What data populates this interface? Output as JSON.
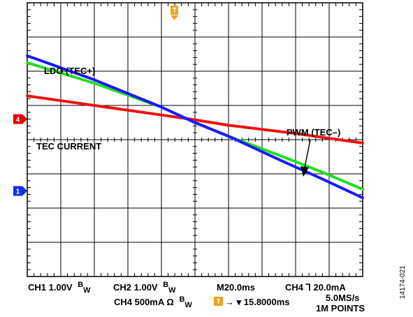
{
  "chart_data": {
    "type": "line",
    "grid": true,
    "divisions": {
      "x": 10,
      "y": 8
    },
    "x_range_div": [
      0,
      10
    ],
    "y_range_div": [
      0,
      8
    ],
    "series": [
      {
        "name": "LDO (TEC+)",
        "color": "#1a1aff",
        "points": [
          [
            0,
            6.45
          ],
          [
            2,
            5.75
          ],
          [
            4,
            4.95
          ],
          [
            5,
            4.5
          ],
          [
            6,
            4.1
          ],
          [
            7.5,
            3.42
          ],
          [
            8.8,
            2.85
          ],
          [
            10,
            2.3
          ]
        ]
      },
      {
        "color": "#22dd22",
        "points": [
          [
            0,
            6.25
          ],
          [
            2,
            5.65
          ],
          [
            4,
            4.95
          ],
          [
            5,
            4.5
          ],
          [
            6,
            4.1
          ],
          [
            7.5,
            3.55
          ],
          [
            8.8,
            3.05
          ],
          [
            10,
            2.55
          ]
        ]
      },
      {
        "color": "#ee1111",
        "points": [
          [
            0,
            5.28
          ],
          [
            2,
            5.0
          ],
          [
            4,
            4.72
          ],
          [
            5,
            4.58
          ],
          [
            6,
            4.42
          ],
          [
            8,
            4.18
          ],
          [
            10,
            3.9
          ]
        ]
      }
    ],
    "annotations": [
      "LDO (TEC+)",
      "TEC CURRENT",
      "PWM (TEC–)"
    ],
    "channel_markers": [
      {
        "label": "4",
        "level_div": 4.6,
        "color": "#e60000"
      },
      {
        "label": "1",
        "level_div": 2.5,
        "color": "#1030e0"
      }
    ],
    "trigger_marker": {
      "label": "T",
      "position_div": 4.5,
      "color": "#f0a020"
    }
  },
  "status_bar": {
    "ch1": "CH1 1.00V",
    "ch1_bw": "B",
    "ch1_bw_sub": "W",
    "ch2": "CH2 1.00V",
    "ch2_bw": "B",
    "ch2_bw_sub": "W",
    "ch4": "CH4 500mA Ω",
    "ch4_bw": "B",
    "ch4_bw_sub": "W",
    "timebase": "M20.0ms",
    "trig_pos": "→ ▾ 15.8000ms",
    "trigger": "CH4 ⅂ 20.0mA",
    "sample_rate": "5.0MS/s",
    "record": "1M POINTS"
  },
  "figure_id": "14174-021"
}
